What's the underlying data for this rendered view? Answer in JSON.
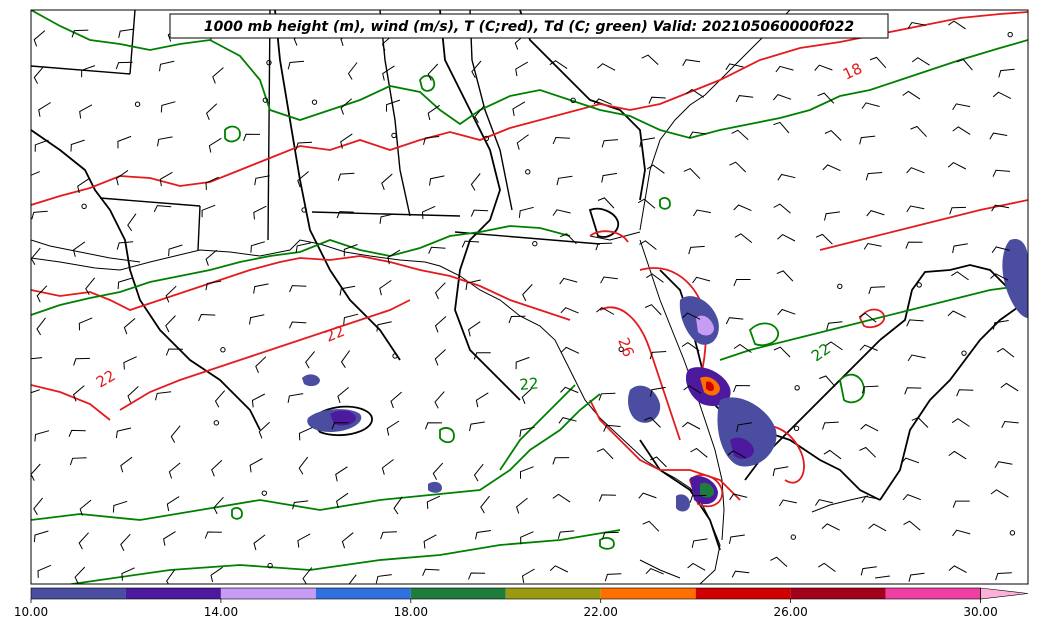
{
  "title": "1000 mb height (m), wind (m/s), T (C;red), Td (C; green) Valid: 202105060000f022",
  "colors": {
    "temperature": "#e41a1c",
    "dewpoint": "#008000",
    "height": "#000000",
    "coastline": "#000000"
  },
  "contour_labels": [
    {
      "text": "18",
      "series": "temperature"
    },
    {
      "text": "22",
      "series": "temperature"
    },
    {
      "text": "22",
      "series": "temperature"
    },
    {
      "text": "26",
      "series": "temperature"
    },
    {
      "text": "22",
      "series": "dewpoint"
    },
    {
      "text": "22",
      "series": "dewpoint"
    }
  ],
  "colorbar": {
    "ticks": [
      "10.00",
      "14.00",
      "18.00",
      "22.00",
      "26.00",
      "30.00"
    ],
    "range": [
      10,
      31
    ],
    "bin_colors": [
      "#4b4ea0",
      "#4d199f",
      "#c79cf5",
      "#3070e0",
      "#1e7d3c",
      "#9b9b12",
      "#ff6f00",
      "#d10000",
      "#a3001c",
      "#f03fa3",
      "#ffb0d8"
    ]
  }
}
